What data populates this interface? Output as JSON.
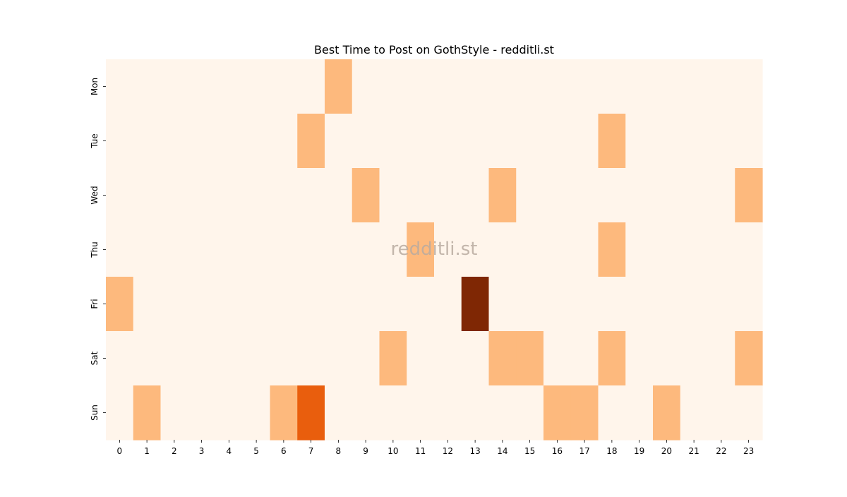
{
  "chart_data": {
    "type": "heatmap",
    "title": "Best Time to Post on GothStyle - redditli.st",
    "watermark": "redditli.st",
    "xlabel": "",
    "ylabel": "",
    "x_categories": [
      "0",
      "1",
      "2",
      "3",
      "4",
      "5",
      "6",
      "7",
      "8",
      "9",
      "10",
      "11",
      "12",
      "13",
      "14",
      "15",
      "16",
      "17",
      "18",
      "19",
      "20",
      "21",
      "22",
      "23"
    ],
    "y_categories": [
      "Mon",
      "Tue",
      "Wed",
      "Thu",
      "Fri",
      "Sat",
      "Sun"
    ],
    "values": [
      [
        0,
        0,
        0,
        0,
        0,
        0,
        0,
        0,
        1,
        0,
        0,
        0,
        0,
        0,
        0,
        0,
        0,
        0,
        0,
        0,
        0,
        0,
        0,
        0
      ],
      [
        0,
        0,
        0,
        0,
        0,
        0,
        0,
        1,
        0,
        0,
        0,
        0,
        0,
        0,
        0,
        0,
        0,
        0,
        1,
        0,
        0,
        0,
        0,
        0
      ],
      [
        0,
        0,
        0,
        0,
        0,
        0,
        0,
        0,
        0,
        1,
        0,
        0,
        0,
        0,
        1,
        0,
        0,
        0,
        0,
        0,
        0,
        0,
        0,
        1
      ],
      [
        0,
        0,
        0,
        0,
        0,
        0,
        0,
        0,
        0,
        0,
        0,
        1,
        0,
        0,
        0,
        0,
        0,
        0,
        1,
        0,
        0,
        0,
        0,
        0
      ],
      [
        1,
        0,
        0,
        0,
        0,
        0,
        0,
        0,
        0,
        0,
        0,
        0,
        0,
        4,
        0,
        0,
        0,
        0,
        0,
        0,
        0,
        0,
        0,
        0
      ],
      [
        0,
        0,
        0,
        0,
        0,
        0,
        0,
        0,
        0,
        0,
        1,
        0,
        0,
        0,
        1,
        1,
        0,
        0,
        1,
        0,
        0,
        0,
        0,
        1
      ],
      [
        0,
        1,
        0,
        0,
        0,
        0,
        1,
        2,
        0,
        0,
        0,
        0,
        0,
        0,
        0,
        0,
        1,
        1,
        0,
        0,
        1,
        0,
        0,
        0
      ]
    ],
    "colormap": "Oranges",
    "value_colors": {
      "0": "#fff5eb",
      "1": "#fdb97d",
      "2": "#e95e0d",
      "4": "#7f2704"
    },
    "colorbar": false,
    "grid": false
  }
}
